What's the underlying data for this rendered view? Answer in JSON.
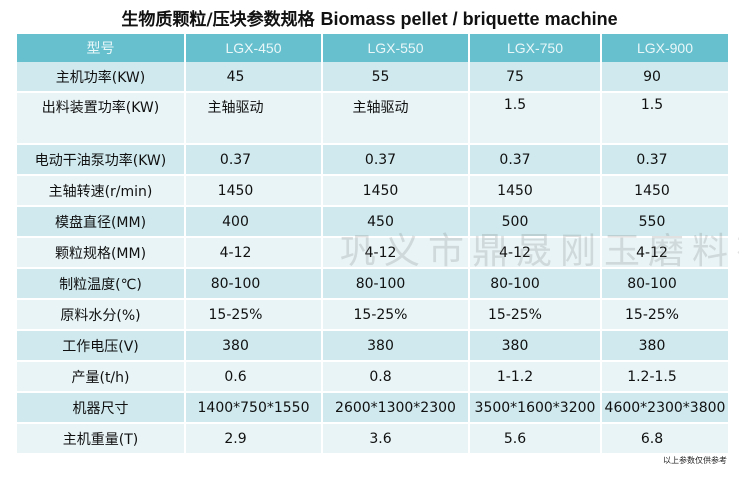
{
  "title_cn": "生物质颗粒/压块参数规格",
  "title_en": "Biomass pellet / briquette machine",
  "table": {
    "header": [
      "型号",
      "LGX-450",
      "LGX-550",
      "LGX-750",
      "LGX-900"
    ],
    "rows": [
      {
        "label": "主机功率(KW)",
        "values": [
          "45",
          "55",
          "75",
          "90"
        ]
      },
      {
        "label": "出料装置功率(KW)",
        "values": [
          "主轴驱动",
          "主轴驱动",
          "1.5",
          "1.5"
        ]
      },
      {
        "label": "电动干油泵功率(KW)",
        "values": [
          "0.37",
          "0.37",
          "0.37",
          "0.37"
        ]
      },
      {
        "label": "主轴转速(r/min)",
        "values": [
          "1450",
          "1450",
          "1450",
          "1450"
        ]
      },
      {
        "label": "模盘直径(MM)",
        "values": [
          "400",
          "450",
          "500",
          "550"
        ]
      },
      {
        "label": "颗粒规格(MM)",
        "values": [
          "4-12",
          "4-12",
          "4-12",
          "4-12"
        ]
      },
      {
        "label": "制粒温度(℃)",
        "values": [
          "80-100",
          "80-100",
          "80-100",
          "80-100"
        ]
      },
      {
        "label": "原料水分(%)",
        "values": [
          "15-25%",
          "15-25%",
          "15-25%",
          "15-25%"
        ]
      },
      {
        "label": "工作电压(V)",
        "values": [
          "380",
          "380",
          "380",
          "380"
        ]
      },
      {
        "label": "产量(t/h)",
        "values": [
          "0.6",
          "0.8",
          "1-1.2",
          "1.2-1.5"
        ]
      },
      {
        "label": "机器尺寸",
        "values": [
          "1400*750*1550",
          "2600*1300*2300",
          "3500*1600*3200",
          "4600*2300*3800"
        ]
      },
      {
        "label": "主机重量(T)",
        "values": [
          "2.9",
          "3.6",
          "5.6",
          "6.8"
        ]
      }
    ]
  },
  "watermark": "巩义市鼎晟刚玉磨料有限公司",
  "footnote": "以上参数仅供参考",
  "colors": {
    "header_bg": "#66c0ce",
    "row_dark": "#cfe9ee",
    "row_light": "#e8f4f6"
  }
}
